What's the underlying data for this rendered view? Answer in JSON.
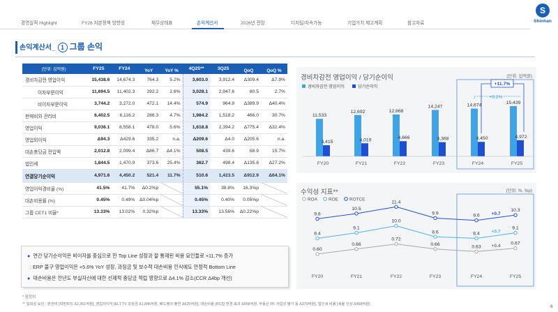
{
  "nav": {
    "items": [
      "경영실적 Highlight",
      "FY26 자본정책 방향성",
      "재무상태표",
      "손익계산서",
      "2026년 전망",
      "디지털/지속가능",
      "기업가치 제고계획",
      "참고자료"
    ],
    "active_index": 3,
    "logo_text": "Shinhan",
    "logo_glyph": "S"
  },
  "section": {
    "prefix": "손익계산서_",
    "number": "1",
    "title": "그룹 손익"
  },
  "table": {
    "headers": [
      "(단위: 십억원)",
      "FY25",
      "FY24",
      "YoY",
      "YoY %",
      "4Q25**",
      "3Q25",
      "QoQ",
      "QoQ %"
    ],
    "rows": [
      {
        "label": "경비차감전 영업이익",
        "indent": false,
        "cells": [
          "15,438.6",
          "14,674.3",
          "764.3",
          "5.2%",
          "3,603.0",
          "3,912.4",
          "Δ309.4",
          "Δ7.9%"
        ]
      },
      {
        "label": "이자부문이익",
        "indent": true,
        "cells": [
          "11,694.5",
          "11,402.3",
          "292.2",
          "2.6%",
          "3,028.1",
          "2,947.6",
          "80.5",
          "2.7%"
        ]
      },
      {
        "label": "비이자부문이익",
        "indent": true,
        "cells": [
          "3,744.2",
          "3,272.0",
          "472.1",
          "14.4%",
          "574.9",
          "964.9",
          "Δ389.9",
          "Δ40.4%"
        ]
      },
      {
        "label": "판매비와 관리비",
        "indent": false,
        "cells": [
          "6,402.5",
          "6,116.2",
          "286.3",
          "4.7%",
          "1,984.2",
          "1,518.2",
          "466.0",
          "30.7%"
        ]
      },
      {
        "label": "영업이익",
        "indent": false,
        "cells": [
          "9,036.1",
          "8,558.1",
          "478.0",
          "5.6%",
          "1,618.8",
          "2,394.2",
          "Δ775.4",
          "Δ32.4%"
        ]
      },
      {
        "label": "영업외이익",
        "indent": false,
        "cells": [
          "Δ94.3",
          "Δ429.6",
          "335.2",
          "n.a.",
          "Δ209.6",
          "Δ4.0",
          "Δ205.6",
          "n.a."
        ]
      },
      {
        "label": "대손충당금 전입액",
        "indent": false,
        "cells": [
          "2,012.8",
          "2,099.4",
          "Δ86.7",
          "Δ4.1%",
          "508.5",
          "439.6",
          "68.9",
          "15.7%"
        ]
      },
      {
        "label": "법인세",
        "indent": false,
        "cells": [
          "1,844.5",
          "1,470.9",
          "373.6",
          "25.4%",
          "362.7",
          "498.4",
          "Δ135.8",
          "Δ27.2%"
        ]
      },
      {
        "label": "연결당기순이익",
        "indent": false,
        "net": true,
        "cells": [
          "4,971.6",
          "4,450.2",
          "521.4",
          "11.7%",
          "510.6",
          "1,423.5",
          "Δ912.9",
          "Δ64.1%"
        ]
      },
      {
        "label": "영업이익경비율 (%)",
        "indent": false,
        "ratio": true,
        "cells": [
          "41.5%",
          "41.7%",
          "Δ0.2%p",
          "",
          "55.1%",
          "38.8%",
          "16.3%p",
          ""
        ]
      },
      {
        "label": "대손비용률 (%)",
        "indent": false,
        "ratio": true,
        "cells": [
          "0.45%",
          "0.49%",
          "Δ0.04%p",
          "",
          "0.45%",
          "0.40%",
          "0.05%p",
          ""
        ]
      },
      {
        "label": "그룹 CET1 비율*",
        "indent": false,
        "ratio": true,
        "cells": [
          "13.33%",
          "13.02%",
          "0.32%p",
          "",
          "13.33%",
          "13.56%",
          "Δ0.22%p",
          ""
        ]
      }
    ]
  },
  "notes": {
    "line1": "연간 당기순이익은 비이자를 중심으로 한 Top Line 성장과 잘 통제된 비용 요인들로 +11.7% 증가",
    "line2": ": ERP 불구 영업이익은 +5.6% YoY 성장, 과징금 및 보수적 대손비용 인식에도 안정적 Bottom Line",
    "line3": "대손비용은 전년도 부실자산에 대한 선제적 충당금 적립 영향으로 Δ4.1% 감소(CCR Δ4bp 개선)"
  },
  "footnotes": {
    "f1": "* 잠정치",
    "f2": "** 일회성 요인 : 판관비 [희망퇴직 Δ2,361억원], 영업외이익 [ELT.TV 과징금 Δ1,846억원, 베드뱅크 출연 Δ625억원], 대손비용 [RC잡 변경 효과 Δ958억원, 부동산 PF 사업성 평가 등 Δ379억원], 법인세 비용 [세율 인상 Δ458억원]"
  },
  "chart_data": [
    {
      "type": "bar",
      "title": "경비차감전 영업이익 / 당기순이익",
      "unit": "(단위: 십억원)",
      "categories": [
        "FY20",
        "FY21",
        "FY22",
        "FY23",
        "FY24",
        "FY25"
      ],
      "series": [
        {
          "name": "경비차감전 영업이익",
          "color": "#3fa3e6",
          "values": [
            11533,
            12692,
            12868,
            14247,
            14674,
            15439
          ],
          "labels": [
            "11,533",
            "12,692",
            "12,868",
            "14,247",
            "14,674",
            "15,439"
          ]
        },
        {
          "name": "당기순이익",
          "color": "#1f4fd1",
          "values": [
            3415,
            4019,
            4666,
            4368,
            4450,
            4972
          ],
          "labels": [
            "3,415",
            "4,019",
            "4,666",
            "4,368",
            "4,450",
            "4,972"
          ]
        }
      ],
      "annotations": [
        "+11.7%",
        "+5.2%"
      ],
      "legend": "top-left"
    },
    {
      "type": "line",
      "title": "수익성 지표**",
      "unit": "(단위: %, %p)",
      "categories": [
        "FY20",
        "FY21",
        "FY22",
        "FY23",
        "FY24",
        "FY25"
      ],
      "series": [
        {
          "name": "ROA",
          "color": "#a8a8a8",
          "values": [
            0.6,
            0.66,
            0.72,
            0.66,
            0.63,
            0.67
          ],
          "labels": [
            "0.60",
            "0.66",
            "0.72",
            "0.66",
            "0.63",
            "0.67"
          ]
        },
        {
          "name": "ROE",
          "color": "#4fb0ea",
          "values": [
            8.4,
            9.1,
            10.0,
            8.6,
            8.4,
            9.1
          ],
          "labels": [
            "8.4",
            "9.1",
            "10.0",
            "8.6",
            "8.4",
            "9.1"
          ]
        },
        {
          "name": "ROTCE",
          "color": "#1f4fd1",
          "values": [
            9.8,
            10.5,
            11.4,
            9.9,
            9.6,
            10.3
          ],
          "labels": [
            "9.8",
            "10.5",
            "11.4",
            "9.9",
            "9.6",
            "10.3"
          ]
        }
      ],
      "changes": [
        "+0.7",
        "+0.7",
        "+0.4"
      ],
      "legend": "top-left"
    }
  ],
  "page_number": "6"
}
